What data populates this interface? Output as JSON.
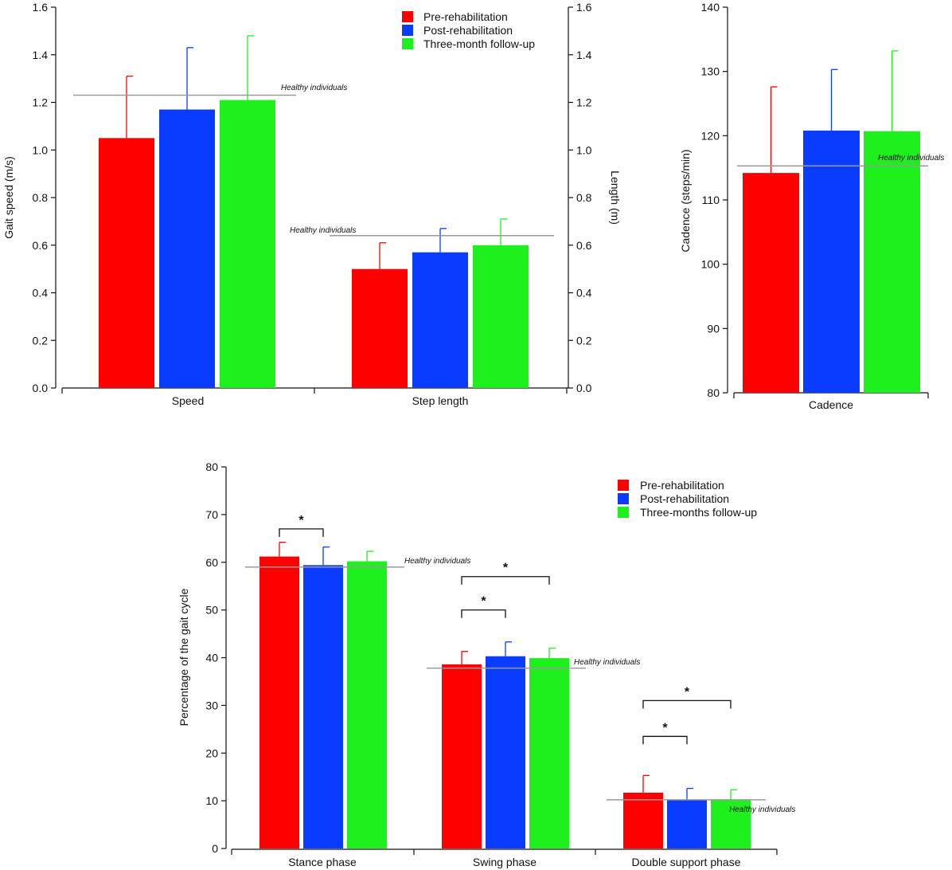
{
  "colors": {
    "pre": "#ff0000",
    "post": "#0a3cff",
    "followup": "#1ef01e",
    "healthy_line": "#999999",
    "axis": "#111111"
  },
  "healthy_label": "Healthy individuals",
  "chart_data": [
    {
      "id": "speed-step",
      "type": "bar",
      "title": "",
      "categories": [
        "Speed",
        "Step length"
      ],
      "ylabel_left": "Gait speed (m/s)",
      "ylabel_right": "Length (m)",
      "ylim": [
        0,
        1.6
      ],
      "yticks": [
        "0.0",
        "0.2",
        "0.4",
        "0.6",
        "0.8",
        "1.0",
        "1.2",
        "1.4",
        "1.6"
      ],
      "legend_position": "top-right",
      "legend": [
        "Pre-rehabilitation",
        "Post-rehabilitation",
        "Three-month follow-up"
      ],
      "series": [
        {
          "name": "Pre-rehabilitation",
          "values": [
            1.05,
            0.5
          ],
          "errors": [
            0.26,
            0.11
          ]
        },
        {
          "name": "Post-rehabilitation",
          "values": [
            1.17,
            0.57
          ],
          "errors": [
            0.26,
            0.1
          ]
        },
        {
          "name": "Three-month follow-up",
          "values": [
            1.21,
            0.6
          ],
          "errors": [
            0.27,
            0.11
          ]
        }
      ],
      "healthy": [
        1.23,
        0.64
      ]
    },
    {
      "id": "cadence",
      "type": "bar",
      "title": "",
      "categories": [
        "Cadence"
      ],
      "ylabel": "Cadence (steps/min)",
      "ylim": [
        80,
        140
      ],
      "yticks": [
        "80",
        "90",
        "100",
        "110",
        "120",
        "130",
        "140"
      ],
      "series": [
        {
          "name": "Pre-rehabilitation",
          "values": [
            114.2
          ],
          "errors": [
            13.4
          ]
        },
        {
          "name": "Post-rehabilitation",
          "values": [
            120.8
          ],
          "errors": [
            9.5
          ]
        },
        {
          "name": "Three-month follow-up",
          "values": [
            120.7
          ],
          "errors": [
            12.5
          ]
        }
      ],
      "healthy": [
        115.3
      ]
    },
    {
      "id": "gait-cycle",
      "type": "bar",
      "title": "",
      "categories": [
        "Stance phase",
        "Swing phase",
        "Double support phase"
      ],
      "ylabel": "Percentage of the gait cycle",
      "ylim": [
        0,
        80
      ],
      "yticks": [
        "0",
        "10",
        "20",
        "30",
        "40",
        "50",
        "60",
        "70",
        "80"
      ],
      "legend_position": "top-right",
      "legend": [
        "Pre-rehabilitation",
        "Post-rehabilitation",
        "Three-months follow-up"
      ],
      "series": [
        {
          "name": "Pre-rehabilitation",
          "values": [
            61.2,
            38.6,
            11.7
          ],
          "errors": [
            3.0,
            2.7,
            3.6
          ]
        },
        {
          "name": "Post-rehabilitation",
          "values": [
            59.4,
            40.3,
            10.1
          ],
          "errors": [
            3.8,
            3.0,
            2.5
          ]
        },
        {
          "name": "Three-months follow-up",
          "values": [
            60.2,
            39.9,
            10.1
          ],
          "errors": [
            2.1,
            2.1,
            2.2
          ]
        }
      ],
      "healthy": [
        59.0,
        37.8,
        10.2
      ],
      "significance": [
        {
          "category": 0,
          "from": 0,
          "to": 1,
          "level": 67,
          "label": "*"
        },
        {
          "category": 1,
          "from": 0,
          "to": 1,
          "level": 50,
          "label": "*"
        },
        {
          "category": 1,
          "from": 0,
          "to": 2,
          "level": 57,
          "label": "*"
        },
        {
          "category": 2,
          "from": 0,
          "to": 1,
          "level": 23.5,
          "label": "*"
        },
        {
          "category": 2,
          "from": 0,
          "to": 2,
          "level": 31,
          "label": "*"
        }
      ]
    }
  ]
}
